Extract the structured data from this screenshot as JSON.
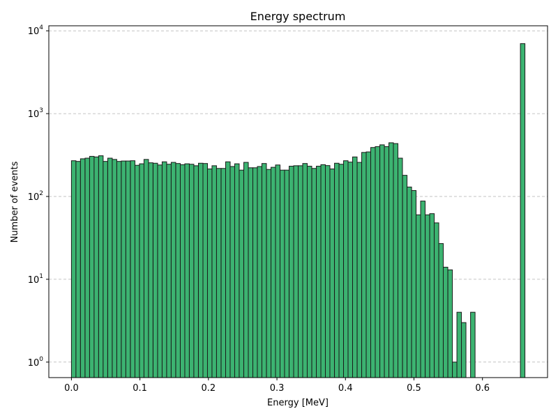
{
  "chart_data": {
    "type": "bar",
    "title": "Energy spectrum",
    "xlabel": "Energy [MeV]",
    "ylabel": "Number of events",
    "yscale": "log",
    "xlim": [
      -0.033,
      0.695
    ],
    "ylim": [
      0.65,
      11500
    ],
    "grid": "y-dashed",
    "bar_color": "#3cb371",
    "bar_edge_color": "#1a1a1a",
    "bin_width": 0.00662,
    "bin_starts": [
      0.0,
      0.0066,
      0.0132,
      0.0199,
      0.0265,
      0.0331,
      0.0397,
      0.0463,
      0.053,
      0.0596,
      0.0662,
      0.0728,
      0.0794,
      0.0861,
      0.0927,
      0.0993,
      0.1059,
      0.1125,
      0.1192,
      0.1258,
      0.1324,
      0.139,
      0.1456,
      0.1523,
      0.1589,
      0.1655,
      0.1721,
      0.1787,
      0.1854,
      0.192,
      0.1986,
      0.2052,
      0.2118,
      0.2185,
      0.2251,
      0.2317,
      0.2383,
      0.2449,
      0.2516,
      0.2582,
      0.2648,
      0.2714,
      0.278,
      0.2847,
      0.2913,
      0.2979,
      0.3045,
      0.3111,
      0.3178,
      0.3244,
      0.331,
      0.3376,
      0.3442,
      0.3509,
      0.3575,
      0.3641,
      0.3707,
      0.3773,
      0.384,
      0.3906,
      0.3972,
      0.4038,
      0.4104,
      0.4171,
      0.4237,
      0.4303,
      0.4369,
      0.4435,
      0.4502,
      0.4568,
      0.4634,
      0.47,
      0.4766,
      0.4833,
      0.4899,
      0.4965,
      0.5031,
      0.5097,
      0.5164,
      0.523,
      0.5296,
      0.5362,
      0.5428,
      0.5495,
      0.5561,
      0.5627,
      0.5693,
      0.5759,
      0.5826,
      0.6554
    ],
    "values": [
      270,
      265,
      285,
      290,
      305,
      300,
      310,
      265,
      290,
      280,
      265,
      268,
      268,
      270,
      238,
      248,
      280,
      255,
      252,
      240,
      262,
      245,
      258,
      250,
      242,
      248,
      245,
      235,
      252,
      250,
      215,
      235,
      218,
      218,
      262,
      230,
      248,
      208,
      258,
      222,
      222,
      230,
      250,
      212,
      225,
      240,
      208,
      208,
      232,
      235,
      235,
      250,
      232,
      218,
      232,
      242,
      236,
      215,
      252,
      245,
      270,
      260,
      300,
      258,
      340,
      345,
      390,
      400,
      420,
      400,
      445,
      435,
      290,
      180,
      130,
      118,
      60,
      88,
      60,
      62,
      48,
      27,
      14,
      13,
      1,
      4,
      3,
      0,
      4,
      7000
    ],
    "x_ticks": [
      "0.0",
      "0.1",
      "0.2",
      "0.3",
      "0.4",
      "0.5",
      "0.6"
    ],
    "x_tick_values": [
      0.0,
      0.1,
      0.2,
      0.3,
      0.4,
      0.5,
      0.6
    ],
    "y_ticks": [
      {
        "base": "10",
        "exp": "0",
        "value": 1
      },
      {
        "base": "10",
        "exp": "1",
        "value": 10
      },
      {
        "base": "10",
        "exp": "2",
        "value": 100
      },
      {
        "base": "10",
        "exp": "3",
        "value": 1000
      },
      {
        "base": "10",
        "exp": "4",
        "value": 10000
      }
    ]
  }
}
